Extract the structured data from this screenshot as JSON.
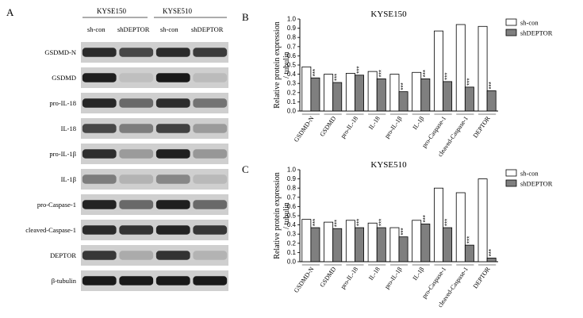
{
  "blot": {
    "panel_letter": "A",
    "cell_lines": [
      "KYSE150",
      "KYSE510"
    ],
    "conditions": [
      "sh-con",
      "shDEPTOR",
      "sh-con",
      "shDEPTOR"
    ],
    "rows": [
      {
        "label": "GSDMD-N",
        "intensities": [
          0.86,
          0.72,
          0.86,
          0.78
        ]
      },
      {
        "label": "GSDMD",
        "intensities": [
          0.92,
          0.12,
          0.95,
          0.14
        ]
      },
      {
        "label": "pro-IL-18",
        "intensities": [
          0.88,
          0.55,
          0.85,
          0.5
        ]
      },
      {
        "label": "IL-18",
        "intensities": [
          0.72,
          0.45,
          0.75,
          0.3
        ]
      },
      {
        "label": "pro-IL-1β",
        "intensities": [
          0.85,
          0.3,
          0.92,
          0.32
        ]
      },
      {
        "label": "IL-1β",
        "intensities": [
          0.45,
          0.18,
          0.4,
          0.15
        ]
      },
      {
        "label": "pro-Caspase-1",
        "intensities": [
          0.9,
          0.55,
          0.92,
          0.55
        ]
      },
      {
        "label": "cleaved-Caspase-1",
        "intensities": [
          0.86,
          0.82,
          0.9,
          0.8
        ]
      },
      {
        "label": "DEPTOR",
        "intensities": [
          0.8,
          0.22,
          0.82,
          0.18
        ]
      },
      {
        "label": "β-tubulin",
        "intensities": [
          0.95,
          0.95,
          0.95,
          0.95
        ]
      }
    ]
  },
  "chart_data": [
    {
      "type": "bar",
      "panel_letter": "B",
      "title": "KYSE150",
      "ylabel": "Relative protein expression\n/ tubulin",
      "ylim": [
        0,
        1.0
      ],
      "yticks": [
        "0.0",
        "0.1",
        "0.2",
        "0.3",
        "0.4",
        "0.5",
        "0.6",
        "0.7",
        "0.8",
        "0.9",
        "1.0"
      ],
      "categories": [
        "GSDMD-N",
        "GSDMD",
        "pro-IL-18",
        "IL-18",
        "pro-IL-1β",
        "IL-1β",
        "pro-Caspase-1",
        "cleaved-Caspase-1",
        "DEPTOR"
      ],
      "series": [
        {
          "name": "sh-con",
          "color": "#ffffff",
          "values": [
            0.48,
            0.4,
            0.41,
            0.43,
            0.4,
            0.42,
            0.87,
            0.94,
            0.92
          ]
        },
        {
          "name": "shDEPTOR",
          "color": "#7f7f7f",
          "values": [
            0.36,
            0.31,
            0.39,
            0.35,
            0.21,
            0.35,
            0.32,
            0.26,
            0.22
          ]
        }
      ],
      "significance": "***",
      "legend_position": "top-right"
    },
    {
      "type": "bar",
      "panel_letter": "C",
      "title": "KYSE510",
      "ylabel": "Relative protein expression\n/ tubulin",
      "ylim": [
        0,
        1.0
      ],
      "yticks": [
        "0.0",
        "0.1",
        "0.2",
        "0.3",
        "0.4",
        "0.5",
        "0.6",
        "0.7",
        "0.8",
        "0.9",
        "1.0"
      ],
      "categories": [
        "GSDMD-N",
        "GSDMD",
        "pro-IL-18",
        "IL-18",
        "pro-IL-1β",
        "IL-1β",
        "pro-Caspase-1",
        "cleaved-Caspase-1",
        "DEPTOR"
      ],
      "series": [
        {
          "name": "sh-con",
          "color": "#ffffff",
          "values": [
            0.46,
            0.43,
            0.45,
            0.42,
            0.37,
            0.45,
            0.8,
            0.75,
            0.9
          ]
        },
        {
          "name": "shDEPTOR",
          "color": "#7f7f7f",
          "values": [
            0.37,
            0.36,
            0.37,
            0.37,
            0.27,
            0.41,
            0.37,
            0.18,
            0.04
          ]
        }
      ],
      "significance": "***",
      "legend_position": "top-right"
    }
  ]
}
